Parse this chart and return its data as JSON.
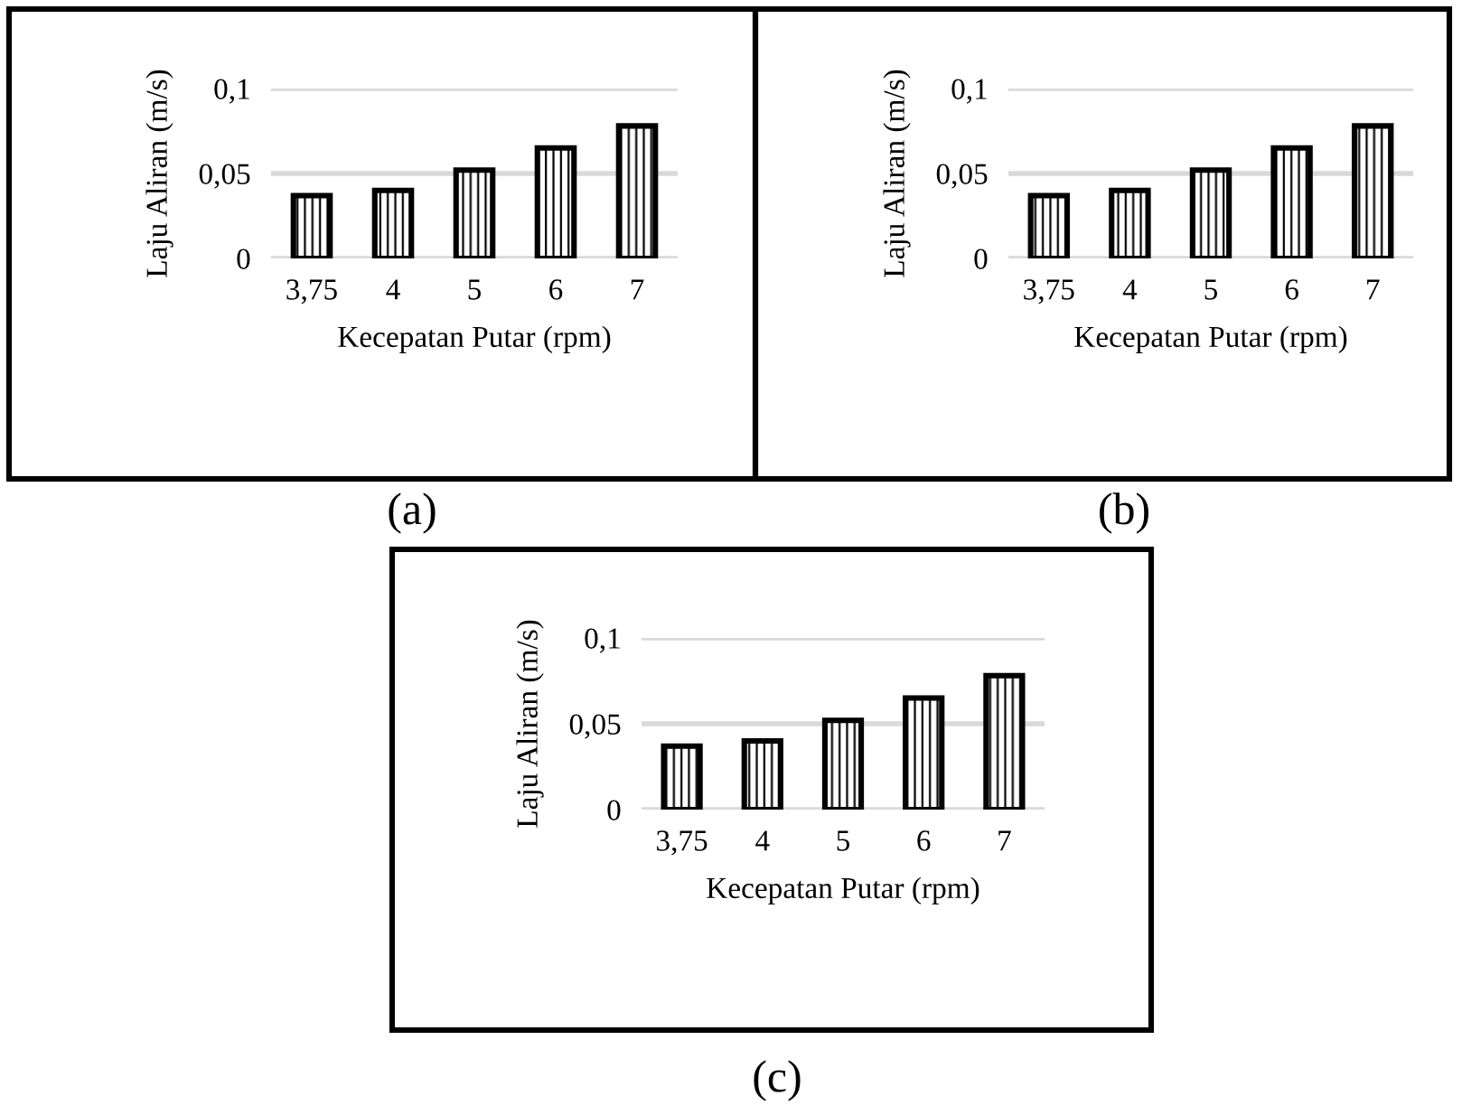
{
  "chart_data": [
    {
      "type": "bar",
      "xlabel": "Kecepatan Putar (rpm)",
      "ylabel": "Laju Aliran (m/s)",
      "categories": [
        "3,75",
        "4",
        "5",
        "6",
        "7"
      ],
      "values": [
        0.037,
        0.04,
        0.052,
        0.065,
        0.078
      ],
      "color": "#000000",
      "ylim": [
        0,
        0.1
      ],
      "yticks": [
        {
          "value": 0,
          "label": "0"
        },
        {
          "value": 0.05,
          "label": "0,05"
        },
        {
          "value": 0.1,
          "label": "0,1"
        }
      ],
      "grid": "y",
      "legend": false,
      "annotations": [
        "(a)"
      ]
    },
    {
      "type": "bar",
      "xlabel": "Kecepatan Putar (rpm)",
      "ylabel": "Laju Aliran (m/s)",
      "categories": [
        "3,75",
        "4",
        "5",
        "6",
        "7"
      ],
      "values": [
        0.037,
        0.04,
        0.052,
        0.065,
        0.078
      ],
      "color": "#000000",
      "ylim": [
        0,
        0.1
      ],
      "yticks": [
        {
          "value": 0,
          "label": "0"
        },
        {
          "value": 0.05,
          "label": "0,05"
        },
        {
          "value": 0.1,
          "label": "0,1"
        }
      ],
      "grid": "y",
      "legend": false,
      "annotations": [
        "(b)"
      ]
    },
    {
      "type": "bar",
      "xlabel": "Kecepatan Putar (rpm)",
      "ylabel": "Laju Aliran (m/s)",
      "categories": [
        "3,75",
        "4",
        "5",
        "6",
        "7"
      ],
      "values": [
        0.037,
        0.04,
        0.052,
        0.065,
        0.078
      ],
      "color": "#000000",
      "ylim": [
        0,
        0.1
      ],
      "yticks": [
        {
          "value": 0,
          "label": "0"
        },
        {
          "value": 0.05,
          "label": "0,05"
        },
        {
          "value": 0.1,
          "label": "0,1"
        }
      ],
      "grid": "y",
      "legend": false,
      "annotations": [
        "(c)"
      ]
    }
  ]
}
